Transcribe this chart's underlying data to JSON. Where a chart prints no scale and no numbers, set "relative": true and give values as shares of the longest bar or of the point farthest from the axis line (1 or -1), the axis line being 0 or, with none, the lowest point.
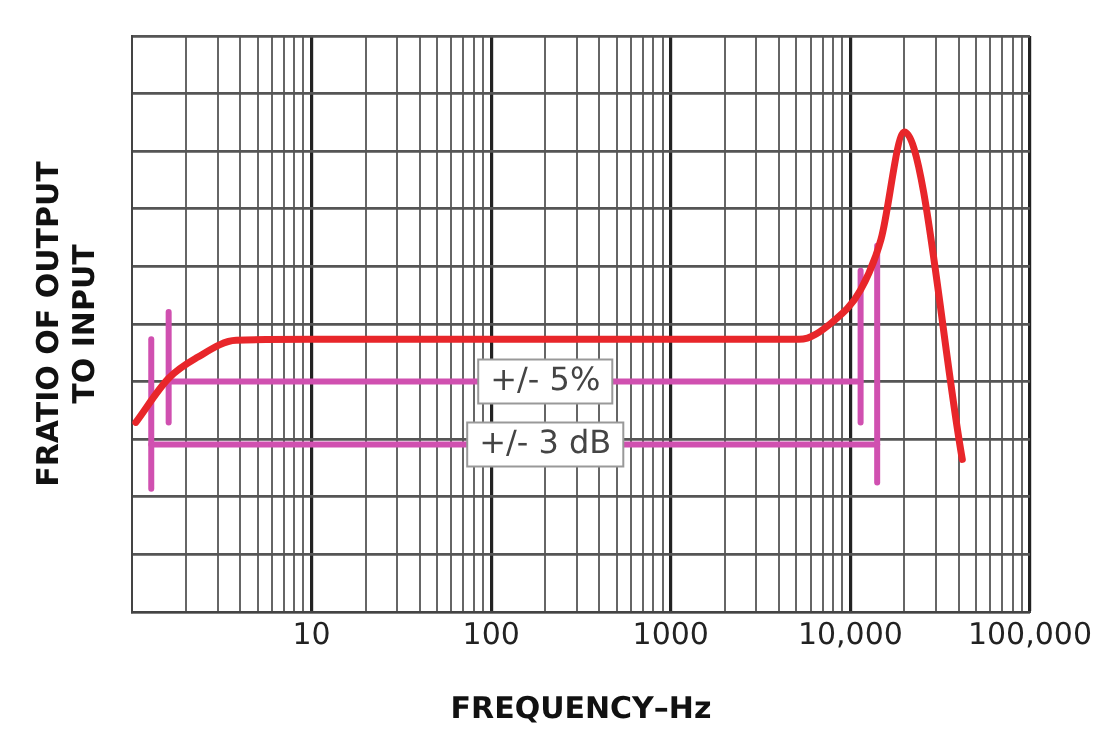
{
  "chart_data": {
    "type": "line",
    "relative": true,
    "xlabel": "FREQUENCY–Hz",
    "ylabel": "FRATIO OF OUTPUT\nTO INPUT",
    "log": "x",
    "grid": true,
    "legend": false,
    "marker": "none",
    "line_style": "solid",
    "xlim": [
      1,
      100000
    ],
    "xticks": [
      10,
      100,
      1000,
      {
        "value": 10000,
        "label": "10,000"
      },
      {
        "value": 100000,
        "label": "100,000"
      }
    ],
    "series": [
      {
        "color": "#e8262a",
        "x": [
          1.05,
          1.6,
          2.3,
          3.8,
          10,
          100,
          1000,
          5200,
          8000,
          11400,
          14800,
          20000,
          42000
        ],
        "values": [
          0.395,
          0.487,
          0.53,
          0.566,
          0.568,
          0.568,
          0.568,
          0.568,
          0.605,
          0.671,
          0.776,
          1,
          0.318
        ]
      },
      {
        "color": "#d050b0",
        "x": [
          1.6,
          11400
        ],
        "values": [
          0.48,
          0.48
        ]
      },
      {
        "color": "#d050b0",
        "x": [
          1.28,
          14100
        ],
        "values": [
          0.349,
          0.349
        ]
      },
      {
        "color": "#d050b0",
        "x": [
          1.6,
          1.6
        ],
        "values": [
          0.395,
          0.625
        ]
      },
      {
        "color": "#d050b0",
        "x": [
          11400,
          11400
        ],
        "values": [
          0.395,
          0.711
        ]
      },
      {
        "color": "#d050b0",
        "x": [
          1.28,
          1.28
        ],
        "values": [
          0.257,
          0.568
        ]
      },
      {
        "color": "#d050b0",
        "x": [
          14100,
          14100
        ],
        "values": [
          0.27,
          0.763
        ]
      }
    ],
    "annotations": [
      {
        "text": "+/- 5%",
        "x": 200,
        "y": 0.48
      },
      {
        "text": "+/- 3 dB",
        "x": 200,
        "y": 0.349
      }
    ]
  }
}
